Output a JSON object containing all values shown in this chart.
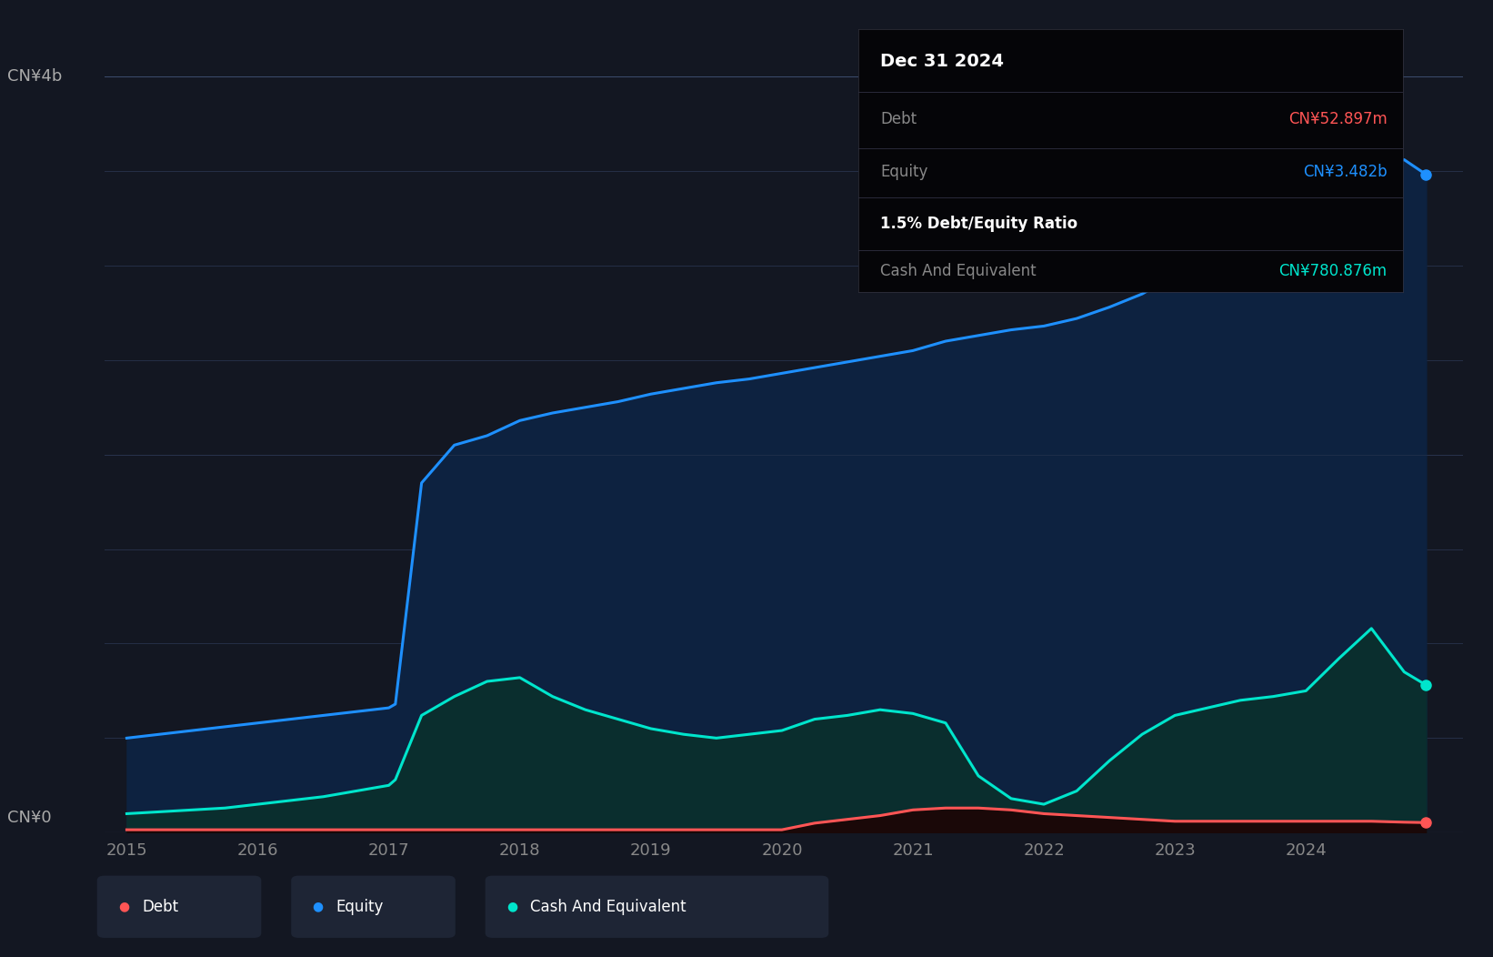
{
  "background_color": "#131722",
  "plot_bg_color": "#131722",
  "ylabel_top": "CN¥4b",
  "ylabel_zero": "CN¥0",
  "years": [
    2015.0,
    2015.25,
    2015.5,
    2015.75,
    2016.0,
    2016.25,
    2016.5,
    2016.75,
    2017.0,
    2017.05,
    2017.25,
    2017.5,
    2017.75,
    2018.0,
    2018.25,
    2018.5,
    2018.75,
    2019.0,
    2019.25,
    2019.5,
    2019.75,
    2020.0,
    2020.25,
    2020.5,
    2020.75,
    2021.0,
    2021.25,
    2021.5,
    2021.75,
    2022.0,
    2022.25,
    2022.5,
    2022.75,
    2023.0,
    2023.25,
    2023.5,
    2023.75,
    2024.0,
    2024.25,
    2024.5,
    2024.75,
    2024.917
  ],
  "equity": [
    0.5,
    0.52,
    0.54,
    0.56,
    0.58,
    0.6,
    0.62,
    0.64,
    0.66,
    0.68,
    1.85,
    2.05,
    2.1,
    2.18,
    2.22,
    2.25,
    2.28,
    2.32,
    2.35,
    2.38,
    2.4,
    2.43,
    2.46,
    2.49,
    2.52,
    2.55,
    2.6,
    2.63,
    2.66,
    2.68,
    2.72,
    2.78,
    2.85,
    2.95,
    3.05,
    3.15,
    3.25,
    3.35,
    3.45,
    3.52,
    3.56,
    3.482
  ],
  "cash": [
    0.1,
    0.11,
    0.12,
    0.13,
    0.15,
    0.17,
    0.19,
    0.22,
    0.25,
    0.28,
    0.62,
    0.72,
    0.8,
    0.82,
    0.72,
    0.65,
    0.6,
    0.55,
    0.52,
    0.5,
    0.52,
    0.54,
    0.6,
    0.62,
    0.65,
    0.63,
    0.58,
    0.3,
    0.18,
    0.15,
    0.22,
    0.38,
    0.52,
    0.62,
    0.66,
    0.7,
    0.72,
    0.75,
    0.92,
    1.08,
    0.85,
    0.7808
  ],
  "debt": [
    0.015,
    0.015,
    0.015,
    0.015,
    0.015,
    0.015,
    0.015,
    0.015,
    0.015,
    0.015,
    0.015,
    0.015,
    0.015,
    0.015,
    0.015,
    0.015,
    0.015,
    0.015,
    0.015,
    0.015,
    0.015,
    0.015,
    0.05,
    0.07,
    0.09,
    0.12,
    0.13,
    0.13,
    0.12,
    0.1,
    0.09,
    0.08,
    0.07,
    0.06,
    0.06,
    0.06,
    0.06,
    0.06,
    0.06,
    0.06,
    0.055,
    0.0529
  ],
  "equity_color": "#1E90FF",
  "equity_fill": "#0d2240",
  "cash_color": "#00E5CC",
  "cash_fill": "#0a2e2e",
  "debt_color": "#FF5555",
  "debt_fill": "#1a0808",
  "ylim": [
    0,
    4.0
  ],
  "xlim": [
    2014.83,
    2025.2
  ],
  "xticks": [
    2015,
    2016,
    2017,
    2018,
    2019,
    2020,
    2021,
    2022,
    2023,
    2024
  ],
  "tooltip": {
    "date": "Dec 31 2024",
    "debt_label": "Debt",
    "debt_value": "CN¥52.897m",
    "equity_label": "Equity",
    "equity_value": "CN¥3.482b",
    "ratio": "1.5% Debt/Equity Ratio",
    "cash_label": "Cash And Equivalent",
    "cash_value": "CN¥780.876m"
  },
  "legend_items": [
    {
      "label": "Debt",
      "color": "#FF5555"
    },
    {
      "label": "Equity",
      "color": "#1E90FF"
    },
    {
      "label": "Cash And Equivalent",
      "color": "#00E5CC"
    }
  ]
}
